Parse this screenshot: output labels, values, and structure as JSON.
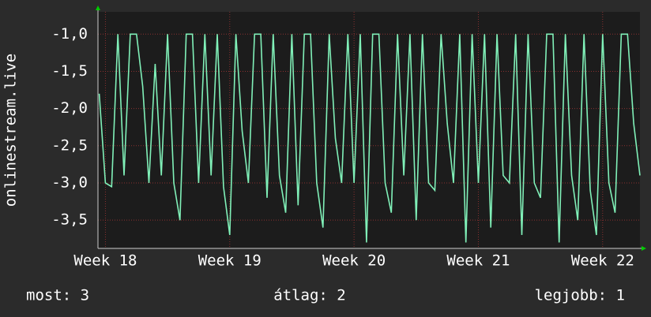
{
  "chart_data": {
    "type": "line",
    "y_label": "onlinestream.live",
    "x": [
      17.95,
      18,
      18.05,
      18.1,
      18.15,
      18.2,
      18.25,
      18.3,
      18.35,
      18.4,
      18.45,
      18.5,
      18.55,
      18.6,
      18.65,
      18.7,
      18.75,
      18.8,
      18.85,
      18.9,
      18.95,
      19,
      19.05,
      19.1,
      19.15,
      19.2,
      19.25,
      19.3,
      19.35,
      19.4,
      19.45,
      19.5,
      19.55,
      19.6,
      19.65,
      19.7,
      19.75,
      19.8,
      19.85,
      19.9,
      19.95,
      20,
      20.05,
      20.1,
      20.15,
      20.2,
      20.25,
      20.3,
      20.35,
      20.4,
      20.45,
      20.5,
      20.55,
      20.6,
      20.65,
      20.7,
      20.75,
      20.8,
      20.85,
      20.9,
      20.95,
      21,
      21.05,
      21.1,
      21.15,
      21.2,
      21.25,
      21.3,
      21.35,
      21.4,
      21.45,
      21.5,
      21.55,
      21.6,
      21.65,
      21.7,
      21.75,
      21.8,
      21.85,
      21.9,
      21.95,
      22,
      22.05,
      22.1,
      22.15,
      22.2,
      22.25,
      22.3
    ],
    "series": [
      {
        "color": "#80f0b8",
        "values": [
          -1.8,
          -3.0,
          -3.05,
          -1.0,
          -2.9,
          -1.0,
          -1.0,
          -1.7,
          -3.0,
          -1.4,
          -2.9,
          -1.0,
          -3.0,
          -3.5,
          -1.0,
          -1.0,
          -3.0,
          -1.0,
          -2.9,
          -1.0,
          -3.05,
          -3.7,
          -1.0,
          -2.3,
          -3.0,
          -1.0,
          -1.0,
          -3.2,
          -1.0,
          -2.9,
          -3.4,
          -1.0,
          -3.3,
          -1.0,
          -1.0,
          -3.0,
          -3.6,
          -1.0,
          -2.4,
          -3.0,
          -1.0,
          -3.0,
          -1.0,
          -3.8,
          -1.0,
          -1.0,
          -3.0,
          -3.4,
          -1.0,
          -2.9,
          -1.0,
          -3.5,
          -1.0,
          -3.0,
          -3.1,
          -1.0,
          -2.2,
          -3.0,
          -1.0,
          -3.8,
          -1.0,
          -3.0,
          -1.0,
          -3.6,
          -1.0,
          -2.9,
          -3.0,
          -1.0,
          -3.7,
          -1.0,
          -3.0,
          -3.2,
          -1.0,
          -1.0,
          -3.8,
          -1.0,
          -2.9,
          -3.5,
          -1.0,
          -3.1,
          -3.7,
          -1.0,
          -3.0,
          -3.4,
          -1.0,
          -1.0,
          -2.2,
          -2.9
        ]
      }
    ],
    "xlim": [
      17.94,
      22.3
    ],
    "xticks": [
      {
        "value": 18,
        "label": "Week 18"
      },
      {
        "value": 19,
        "label": "Week 19"
      },
      {
        "value": 20,
        "label": "Week 20"
      },
      {
        "value": 21,
        "label": "Week 21"
      },
      {
        "value": 22,
        "label": "Week 22"
      }
    ],
    "ylim": [
      -3.88,
      -0.7
    ],
    "yticks": [
      {
        "value": -1,
        "label": "-1,0"
      },
      {
        "value": -1.5,
        "label": "-1,5"
      },
      {
        "value": -2,
        "label": "-2,0"
      },
      {
        "value": -2.5,
        "label": "-2,5"
      },
      {
        "value": -3,
        "label": "-3,0"
      },
      {
        "value": -3.5,
        "label": "-3,5"
      }
    ],
    "grid": true,
    "stats": [
      "most: 3",
      "átlag: 2",
      "legjobb: 1"
    ]
  }
}
